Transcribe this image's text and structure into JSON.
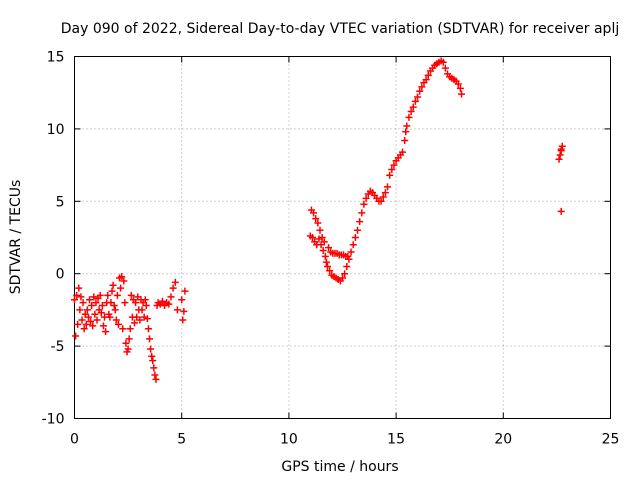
{
  "chart_data": {
    "type": "scatter",
    "title": "Day 090 of 2022, Sidereal Day-to-day VTEC variation (SDTVAR) for receiver aplj",
    "xlabel": "GPS time / hours",
    "ylabel": "SDTVAR / TECUs",
    "xlim": [
      0,
      25
    ],
    "ylim": [
      -10,
      15
    ],
    "xticks": [
      0,
      5,
      10,
      15,
      20,
      25
    ],
    "yticks": [
      -10,
      -5,
      0,
      5,
      10,
      15
    ],
    "xtick_labels": [
      "0",
      "5",
      "10",
      "15",
      "20",
      "25"
    ],
    "ytick_labels": [
      "-10",
      "-5",
      "0",
      "5",
      "10",
      "15"
    ],
    "grid": true,
    "legend": "none",
    "marker": "+",
    "color": "#ff0000",
    "series": [
      {
        "points": [
          [
            0.0,
            -1.8
          ],
          [
            0.05,
            -4.3
          ],
          [
            0.1,
            -1.5
          ],
          [
            0.15,
            -3.5
          ],
          [
            0.2,
            -1.0
          ],
          [
            0.25,
            -2.5
          ],
          [
            0.3,
            -1.6
          ],
          [
            0.35,
            -3.2
          ],
          [
            0.4,
            -2.0
          ],
          [
            0.45,
            -3.8
          ],
          [
            0.5,
            -2.8
          ],
          [
            0.55,
            -3.5
          ],
          [
            0.6,
            -2.5
          ],
          [
            0.65,
            -3.0
          ],
          [
            0.7,
            -1.8
          ],
          [
            0.75,
            -3.3
          ],
          [
            0.8,
            -2.2
          ],
          [
            0.85,
            -3.6
          ],
          [
            0.9,
            -1.6
          ],
          [
            0.95,
            -2.8
          ],
          [
            1.0,
            -2.0
          ],
          [
            1.05,
            -3.2
          ],
          [
            1.1,
            -1.7
          ],
          [
            1.15,
            -2.5
          ],
          [
            1.2,
            -1.5
          ],
          [
            1.25,
            -2.7
          ],
          [
            1.3,
            -2.2
          ],
          [
            1.35,
            -3.6
          ],
          [
            1.4,
            -3.0
          ],
          [
            1.45,
            -4.0
          ],
          [
            1.5,
            -2.0
          ],
          [
            1.55,
            -1.5
          ],
          [
            1.6,
            -2.8
          ],
          [
            1.65,
            -3.0
          ],
          [
            1.7,
            -2.0
          ],
          [
            1.75,
            -1.2
          ],
          [
            1.8,
            -0.8
          ],
          [
            1.85,
            -2.2
          ],
          [
            1.9,
            -2.5
          ],
          [
            1.95,
            -3.2
          ],
          [
            2.0,
            -1.5
          ],
          [
            2.05,
            -3.5
          ],
          [
            2.1,
            -0.3
          ],
          [
            2.15,
            -1.0
          ],
          [
            2.2,
            -0.2
          ],
          [
            2.25,
            -3.8
          ],
          [
            2.3,
            -0.5
          ],
          [
            2.35,
            -2.0
          ],
          [
            2.4,
            -4.8
          ],
          [
            2.45,
            -5.4
          ],
          [
            2.5,
            -5.2
          ],
          [
            2.55,
            -4.5
          ],
          [
            2.6,
            -3.8
          ],
          [
            2.65,
            -1.5
          ],
          [
            2.7,
            -3.0
          ],
          [
            2.75,
            -1.8
          ],
          [
            2.8,
            -3.4
          ],
          [
            2.85,
            -2.0
          ],
          [
            2.9,
            -3.0
          ],
          [
            2.95,
            -1.6
          ],
          [
            3.0,
            -2.5
          ],
          [
            3.05,
            -3.2
          ],
          [
            3.1,
            -1.8
          ],
          [
            3.15,
            -2.5
          ],
          [
            3.2,
            -2.0
          ],
          [
            3.25,
            -3.0
          ],
          [
            3.3,
            -1.8
          ],
          [
            3.35,
            -2.2
          ],
          [
            3.4,
            -3.1
          ],
          [
            3.45,
            -3.8
          ],
          [
            3.5,
            -4.5
          ],
          [
            3.55,
            -5.2
          ],
          [
            3.6,
            -5.7
          ],
          [
            3.65,
            -6.0
          ],
          [
            3.7,
            -6.5
          ],
          [
            3.75,
            -7.0
          ],
          [
            3.8,
            -7.3
          ],
          [
            3.85,
            -2.2
          ],
          [
            3.9,
            -2.0
          ],
          [
            4.0,
            -2.1
          ],
          [
            4.1,
            -1.9
          ],
          [
            4.2,
            -2.2
          ],
          [
            4.3,
            -2.0
          ],
          [
            4.4,
            -2.1
          ],
          [
            4.5,
            -1.6
          ],
          [
            4.6,
            -1.0
          ],
          [
            4.7,
            -0.6
          ],
          [
            4.8,
            -2.5
          ],
          [
            5.0,
            -1.8
          ],
          [
            5.05,
            -3.2
          ],
          [
            5.1,
            -2.6
          ],
          [
            5.15,
            -1.2
          ],
          [
            11.0,
            2.6
          ],
          [
            11.05,
            4.4
          ],
          [
            11.1,
            2.5
          ],
          [
            11.15,
            4.2
          ],
          [
            11.2,
            2.2
          ],
          [
            11.25,
            3.8
          ],
          [
            11.3,
            2.0
          ],
          [
            11.35,
            3.5
          ],
          [
            11.4,
            2.4
          ],
          [
            11.45,
            3.0
          ],
          [
            11.5,
            2.0
          ],
          [
            11.55,
            2.5
          ],
          [
            11.6,
            1.6
          ],
          [
            11.65,
            2.2
          ],
          [
            11.7,
            1.2
          ],
          [
            11.75,
            0.8
          ],
          [
            11.8,
            0.5
          ],
          [
            11.85,
            1.8
          ],
          [
            11.9,
            0.2
          ],
          [
            11.95,
            1.5
          ],
          [
            12.0,
            -0.1
          ],
          [
            12.05,
            1.4
          ],
          [
            12.1,
            -0.2
          ],
          [
            12.15,
            1.4
          ],
          [
            12.2,
            -0.3
          ],
          [
            12.25,
            1.4
          ],
          [
            12.3,
            -0.4
          ],
          [
            12.35,
            1.3
          ],
          [
            12.4,
            -0.5
          ],
          [
            12.45,
            1.3
          ],
          [
            12.5,
            -0.3
          ],
          [
            12.55,
            1.3
          ],
          [
            12.6,
            0.0
          ],
          [
            12.65,
            1.2
          ],
          [
            12.7,
            0.5
          ],
          [
            12.75,
            1.2
          ],
          [
            12.8,
            1.0
          ],
          [
            12.9,
            1.5
          ],
          [
            13.0,
            2.0
          ],
          [
            13.1,
            2.5
          ],
          [
            13.2,
            3.0
          ],
          [
            13.3,
            3.6
          ],
          [
            13.4,
            4.2
          ],
          [
            13.5,
            4.8
          ],
          [
            13.6,
            5.2
          ],
          [
            13.7,
            5.5
          ],
          [
            13.8,
            5.7
          ],
          [
            13.9,
            5.6
          ],
          [
            14.0,
            5.4
          ],
          [
            14.1,
            5.2
          ],
          [
            14.2,
            5.0
          ],
          [
            14.3,
            5.0
          ],
          [
            14.4,
            5.3
          ],
          [
            14.5,
            5.6
          ],
          [
            14.6,
            6.0
          ],
          [
            14.7,
            6.8
          ],
          [
            14.8,
            7.2
          ],
          [
            14.9,
            7.5
          ],
          [
            15.0,
            7.8
          ],
          [
            15.1,
            8.0
          ],
          [
            15.2,
            8.2
          ],
          [
            15.3,
            8.4
          ],
          [
            15.4,
            9.2
          ],
          [
            15.45,
            9.8
          ],
          [
            15.5,
            10.2
          ],
          [
            15.6,
            10.8
          ],
          [
            15.7,
            11.2
          ],
          [
            15.8,
            11.5
          ],
          [
            15.9,
            11.9
          ],
          [
            16.0,
            12.2
          ],
          [
            16.1,
            12.6
          ],
          [
            16.2,
            12.9
          ],
          [
            16.3,
            13.2
          ],
          [
            16.4,
            13.4
          ],
          [
            16.5,
            13.7
          ],
          [
            16.6,
            14.0
          ],
          [
            16.7,
            14.2
          ],
          [
            16.8,
            14.4
          ],
          [
            16.9,
            14.5
          ],
          [
            17.0,
            14.6
          ],
          [
            17.1,
            14.7
          ],
          [
            17.2,
            14.6
          ],
          [
            17.3,
            14.2
          ],
          [
            17.4,
            13.8
          ],
          [
            17.5,
            13.6
          ],
          [
            17.6,
            13.5
          ],
          [
            17.7,
            13.4
          ],
          [
            17.8,
            13.3
          ],
          [
            17.9,
            13.1
          ],
          [
            18.0,
            12.8
          ],
          [
            18.05,
            12.4
          ],
          [
            22.6,
            7.9
          ],
          [
            22.65,
            8.2
          ],
          [
            22.7,
            8.6
          ],
          [
            22.75,
            8.8
          ],
          [
            22.7,
            8.5
          ],
          [
            22.7,
            4.3
          ]
        ]
      }
    ]
  }
}
